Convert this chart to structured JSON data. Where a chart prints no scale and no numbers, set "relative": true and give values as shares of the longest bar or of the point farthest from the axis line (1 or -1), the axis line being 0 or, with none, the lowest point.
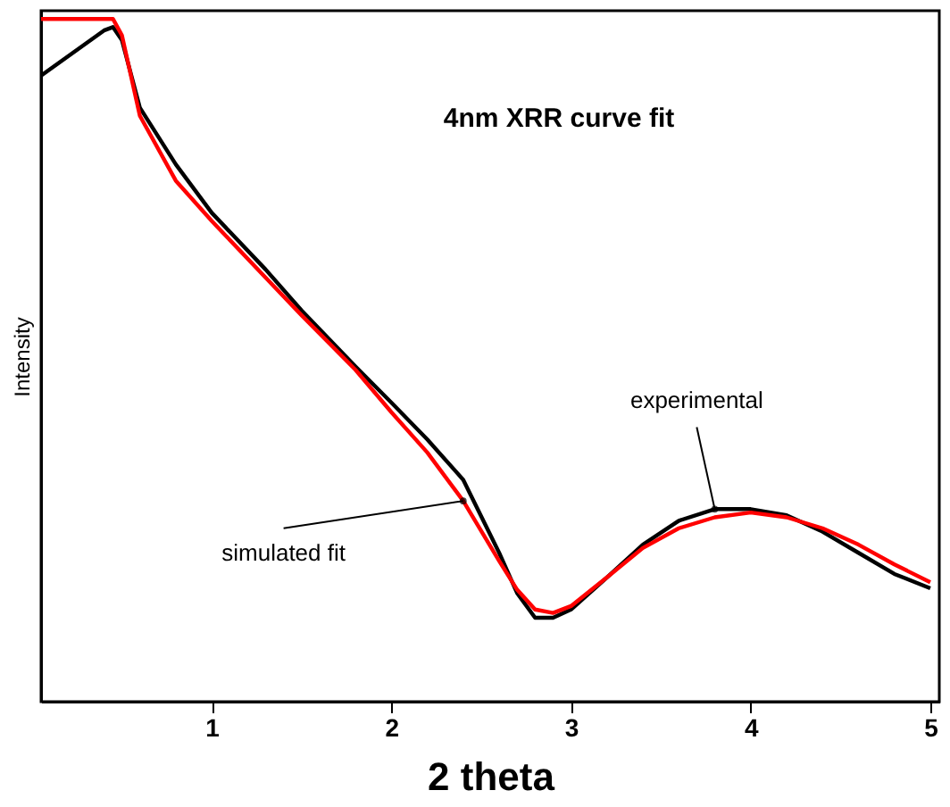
{
  "chart_data": {
    "type": "line",
    "title": "4nm XRR curve fit",
    "xlabel": "2 theta",
    "ylabel": "Intensity",
    "relative": true,
    "tick_labels": "x",
    "grid": false,
    "xlim": [
      0.05,
      5.05
    ],
    "xticks": [
      1,
      2,
      3,
      4,
      5
    ],
    "series": [
      {
        "name": "experimental",
        "color": "#000000",
        "x": [
          0.05,
          0.4,
          0.45,
          0.5,
          0.6,
          0.8,
          1.0,
          1.3,
          1.5,
          1.8,
          2.0,
          2.2,
          2.4,
          2.6,
          2.7,
          2.8,
          2.9,
          3.0,
          3.2,
          3.4,
          3.6,
          3.8,
          4.0,
          4.2,
          4.4,
          4.6,
          4.8,
          5.0
        ],
        "values": [
          0.917,
          0.983,
          0.988,
          0.969,
          0.87,
          0.787,
          0.716,
          0.633,
          0.573,
          0.491,
          0.438,
          0.384,
          0.325,
          0.218,
          0.159,
          0.123,
          0.123,
          0.135,
          0.182,
          0.23,
          0.265,
          0.282,
          0.282,
          0.273,
          0.249,
          0.218,
          0.187,
          0.166
        ]
      },
      {
        "name": "simulated fit",
        "color": "#ff0000",
        "x": [
          0.05,
          0.45,
          0.5,
          0.6,
          0.8,
          1.0,
          1.3,
          1.5,
          1.8,
          2.0,
          2.2,
          2.4,
          2.6,
          2.7,
          2.8,
          2.9,
          3.0,
          3.2,
          3.4,
          3.6,
          3.8,
          4.0,
          4.2,
          4.4,
          4.6,
          4.8,
          5.0
        ],
        "values": [
          1,
          1,
          0.976,
          0.858,
          0.763,
          0.704,
          0.621,
          0.566,
          0.486,
          0.424,
          0.365,
          0.294,
          0.206,
          0.164,
          0.135,
          0.13,
          0.14,
          0.182,
          0.225,
          0.254,
          0.27,
          0.277,
          0.27,
          0.254,
          0.23,
          0.201,
          0.175
        ]
      }
    ]
  }
}
